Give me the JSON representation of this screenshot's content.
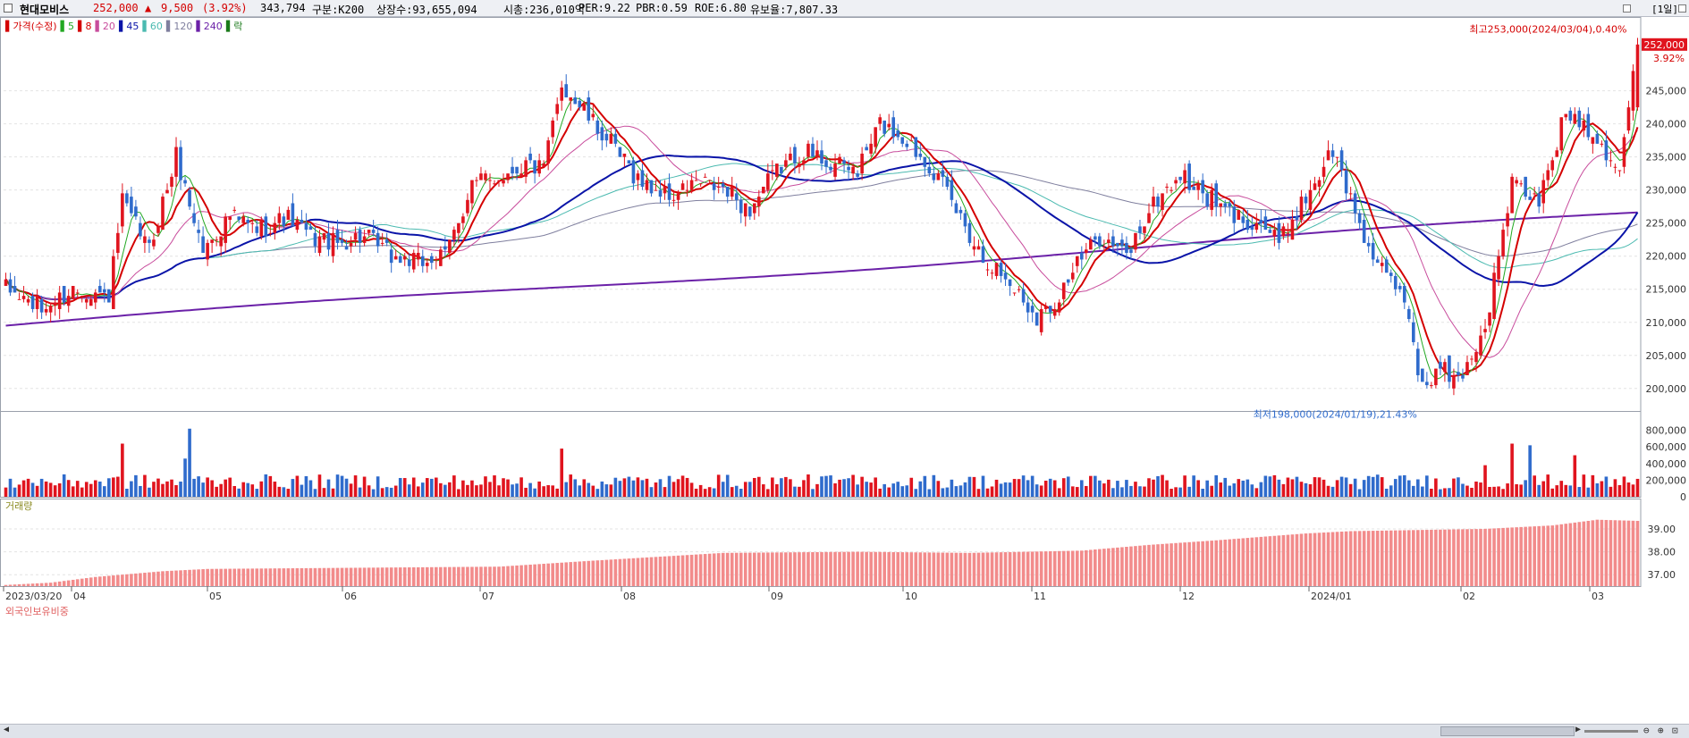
{
  "header": {
    "name": "현대모비스",
    "price": "252,000",
    "change_arrow": "▲",
    "change": "9,500",
    "change_pct": "(3.92%)",
    "volume": "343,794",
    "market": "구분:K200",
    "shares": "상장수:93,655,094",
    "market_cap": "시총:236,010억",
    "per": "PER:9.22",
    "pbr": "PBR:0.59",
    "roe": "ROE:6.80",
    "float_ratio": "유보율:7,807.33",
    "period": "[1일]"
  },
  "legend": [
    {
      "label": "가격(수정)",
      "color": "#d40000"
    },
    {
      "label": "5",
      "color": "#22a822"
    },
    {
      "label": "8",
      "color": "#d40000"
    },
    {
      "label": "20",
      "color": "#c84c9c"
    },
    {
      "label": "45",
      "color": "#0a14a8"
    },
    {
      "label": "60",
      "color": "#4bbab0"
    },
    {
      "label": "120",
      "color": "#7f7f9e"
    },
    {
      "label": "240",
      "color": "#6b21a8"
    },
    {
      "label": "락",
      "color": "#1a7a1a"
    }
  ],
  "panels": {
    "volume_title": "거래량",
    "foreign_title": "외국인보유비중"
  },
  "colors": {
    "up": "#e0141e",
    "down": "#2f6bcc",
    "ma5": "#22a822",
    "ma8": "#d40000",
    "ma20": "#c84c9c",
    "ma45": "#0a14a8",
    "ma60": "#4bbab0",
    "ma120": "#7f7f9e",
    "ma240": "#6b21a8",
    "foreign_bar": "#f28b8b"
  },
  "chart_data": [
    {
      "type": "candlestick",
      "title": "현대모비스",
      "x_ticks": [
        "2023/03/20",
        "04",
        "05",
        "06",
        "07",
        "08",
        "09",
        "10",
        "11",
        "12",
        "2024/01",
        "02",
        "03"
      ],
      "ylim": [
        197000,
        254000
      ],
      "y_ticks": [
        200000,
        205000,
        210000,
        215000,
        220000,
        225000,
        230000,
        235000,
        240000,
        245000
      ],
      "y_tick_labels": [
        "200,000",
        "205,000",
        "210,000",
        "215,000",
        "220,000",
        "225,000",
        "230,000",
        "235,000",
        "240,000",
        "245,000"
      ],
      "last_price_label": "252,000",
      "last_pct_label": "3.92%",
      "max_annotation": "최고253,000(2024/03/04),0.40%",
      "min_annotation": "최저198,000(2024/01/19),21.43%",
      "anchors": [
        [
          0,
          215000
        ],
        [
          8,
          212000
        ],
        [
          15,
          215000
        ],
        [
          23,
          214000
        ],
        [
          26,
          228000
        ],
        [
          32,
          221000
        ],
        [
          38,
          235000
        ],
        [
          44,
          221000
        ],
        [
          50,
          226000
        ],
        [
          56,
          224000
        ],
        [
          62,
          226000
        ],
        [
          68,
          223000
        ],
        [
          74,
          222000
        ],
        [
          80,
          223000
        ],
        [
          86,
          220000
        ],
        [
          92,
          219000
        ],
        [
          98,
          220000
        ],
        [
          104,
          231000
        ],
        [
          110,
          232000
        ],
        [
          116,
          234000
        ],
        [
          120,
          233000
        ],
        [
          124,
          246000
        ],
        [
          130,
          241000
        ],
        [
          136,
          236000
        ],
        [
          142,
          231000
        ],
        [
          148,
          229000
        ],
        [
          154,
          231000
        ],
        [
          160,
          230000
        ],
        [
          166,
          227000
        ],
        [
          172,
          233000
        ],
        [
          178,
          236000
        ],
        [
          184,
          234000
        ],
        [
          190,
          233000
        ],
        [
          195,
          240000
        ],
        [
          200,
          238000
        ],
        [
          206,
          234000
        ],
        [
          212,
          227000
        ],
        [
          218,
          220000
        ],
        [
          224,
          216000
        ],
        [
          230,
          211000
        ],
        [
          234,
          213000
        ],
        [
          238,
          218000
        ],
        [
          244,
          223000
        ],
        [
          250,
          220000
        ],
        [
          256,
          228000
        ],
        [
          262,
          232000
        ],
        [
          268,
          229000
        ],
        [
          274,
          226000
        ],
        [
          280,
          225000
        ],
        [
          284,
          222000
        ],
        [
          290,
          229000
        ],
        [
          296,
          236000
        ],
        [
          302,
          225000
        ],
        [
          306,
          218000
        ],
        [
          312,
          214000
        ],
        [
          316,
          200000
        ],
        [
          320,
          203000
        ],
        [
          324,
          201000
        ],
        [
          330,
          209000
        ],
        [
          336,
          231000
        ],
        [
          342,
          228000
        ],
        [
          348,
          242000
        ],
        [
          354,
          239000
        ],
        [
          360,
          233000
        ],
        [
          364,
          252000
        ]
      ],
      "moving_averages": [
        "5",
        "8",
        "20",
        "45",
        "60",
        "120",
        "240"
      ]
    },
    {
      "type": "bar",
      "title": "거래량",
      "ylim": [
        0,
        850000
      ],
      "y_ticks": [
        0,
        200000,
        400000,
        600000,
        800000
      ],
      "y_tick_labels": [
        "0",
        "200,000",
        "400,000",
        "600,000",
        "800,000"
      ],
      "spikes": [
        [
          26,
          640000
        ],
        [
          41,
          820000
        ],
        [
          40,
          460000
        ],
        [
          124,
          580000
        ],
        [
          336,
          640000
        ],
        [
          340,
          620000
        ],
        [
          350,
          500000
        ],
        [
          330,
          380000
        ]
      ]
    },
    {
      "type": "bar",
      "title": "외국인보유비중",
      "ylim": [
        36.5,
        39.7
      ],
      "y_ticks": [
        37.0,
        38.0,
        39.0
      ],
      "y_tick_labels": [
        "37.00",
        "38.00",
        "39.00"
      ],
      "anchors": [
        [
          0,
          36.55
        ],
        [
          10,
          36.65
        ],
        [
          20,
          36.9
        ],
        [
          35,
          37.15
        ],
        [
          45,
          37.25
        ],
        [
          110,
          37.35
        ],
        [
          130,
          37.6
        ],
        [
          160,
          37.95
        ],
        [
          190,
          38.0
        ],
        [
          215,
          37.95
        ],
        [
          240,
          38.05
        ],
        [
          255,
          38.3
        ],
        [
          270,
          38.5
        ],
        [
          290,
          38.8
        ],
        [
          300,
          38.9
        ],
        [
          330,
          39.0
        ],
        [
          345,
          39.15
        ],
        [
          355,
          39.4
        ],
        [
          364,
          39.35
        ]
      ]
    }
  ]
}
